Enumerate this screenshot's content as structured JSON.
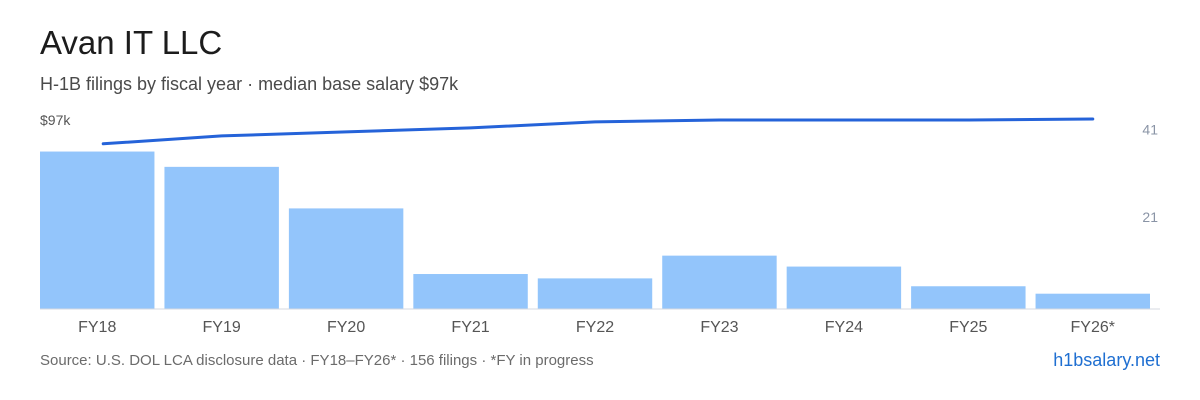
{
  "title": "Avan IT LLC",
  "subtitle": "H-1B filings by fiscal year · median base salary $97k",
  "footer": {
    "source": "Source: U.S. DOL LCA disclosure data · FY18–FY26* · 156 filings · *FY in progress",
    "brand": "h1bsalary.net"
  },
  "colors": {
    "bar": "#93c5fb",
    "line": "#2563d9",
    "axis_text": "#555555",
    "right_tick_text": "#8a94a6",
    "baseline": "#d5d9e0"
  },
  "chart_data": {
    "type": "bar",
    "categories": [
      "FY18",
      "FY19",
      "FY20",
      "FY21",
      "FY22",
      "FY23",
      "FY24",
      "FY25",
      "FY26*"
    ],
    "series": [
      {
        "type": "bar",
        "axis": "right",
        "values": [
          36,
          32.5,
          23,
          8,
          7,
          12.2,
          9.7,
          5.2,
          3.5
        ]
      },
      {
        "type": "line",
        "axis": "left",
        "values": [
          83,
          87,
          89,
          91,
          94,
          95,
          95,
          95,
          95.5
        ]
      }
    ],
    "left_axis": {
      "tick_labels": [
        "$97k"
      ],
      "ylim": [
        0,
        100
      ]
    },
    "right_axis": {
      "ticks": [
        41,
        21
      ],
      "ylim": [
        0,
        45.5
      ]
    },
    "grid": false,
    "legend": "none"
  }
}
